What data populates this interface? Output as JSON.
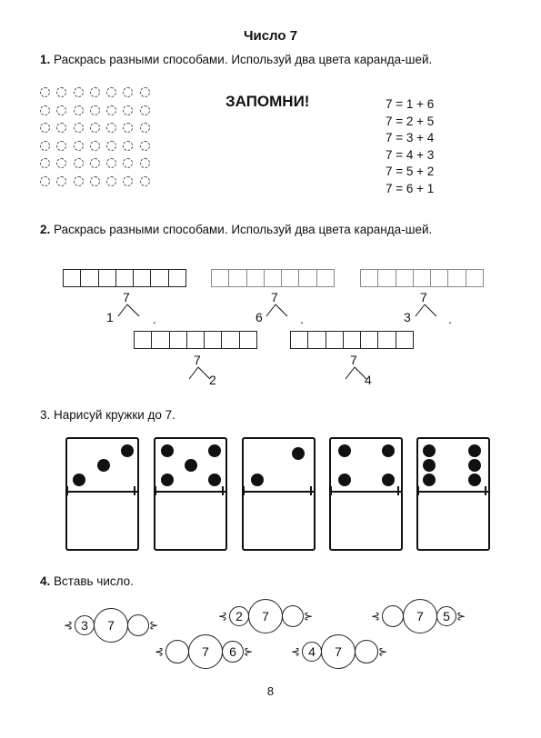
{
  "title": "Число 7",
  "task1": {
    "num": "1.",
    "text": "Раскрась разными способами. Используй два цвета каранда-шей."
  },
  "remember": "ЗАПОМНИ!",
  "equations": [
    "7 = 1 + 6",
    "7 = 2 + 5",
    "7 = 3 + 4",
    "7 = 4 + 3",
    "7 = 5 + 2",
    "7 = 6 + 1"
  ],
  "task2": {
    "num": "2.",
    "text": "Раскрась разными способами. Используй два цвета каранда-шей."
  },
  "splits": [
    {
      "top": "7",
      "left": "1",
      "right": ""
    },
    {
      "top": "7",
      "left": "6",
      "right": ""
    },
    {
      "top": "7",
      "left": "3",
      "right": ""
    },
    {
      "top": "7",
      "left": "",
      "right": "2"
    },
    {
      "top": "7",
      "left": "",
      "right": "4"
    }
  ],
  "task3": {
    "num": "3.",
    "text": "Нарисуй кружки до 7."
  },
  "dominoes_dots": [
    3,
    5,
    2,
    4,
    6
  ],
  "task4": {
    "num": "4.",
    "text": "Вставь число."
  },
  "bead_chains": [
    [
      "3",
      "7",
      ""
    ],
    [
      "2",
      "7",
      ""
    ],
    [
      "",
      "7",
      "5"
    ],
    [
      "",
      "7",
      "6"
    ],
    [
      "4",
      "7",
      ""
    ]
  ],
  "page_number": "8"
}
